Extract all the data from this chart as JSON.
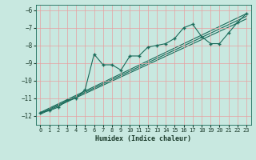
{
  "title": "",
  "xlabel": "Humidex (Indice chaleur)",
  "ylabel": "",
  "bg_color": "#c8e8e0",
  "grid_color": "#e8a0a0",
  "line_color": "#1a6b5a",
  "xlim": [
    -0.5,
    23.5
  ],
  "ylim": [
    -12.5,
    -5.7
  ],
  "xticks": [
    0,
    1,
    2,
    3,
    4,
    5,
    6,
    7,
    8,
    9,
    10,
    11,
    12,
    13,
    14,
    15,
    16,
    17,
    18,
    19,
    20,
    21,
    22,
    23
  ],
  "yticks": [
    -12,
    -11,
    -10,
    -9,
    -8,
    -7,
    -6
  ],
  "main_x": [
    0,
    1,
    2,
    3,
    4,
    5,
    6,
    7,
    8,
    9,
    10,
    11,
    12,
    13,
    14,
    15,
    16,
    17,
    18,
    19,
    20,
    21,
    22,
    23
  ],
  "main_y": [
    -11.8,
    -11.7,
    -11.5,
    -11.1,
    -11.0,
    -10.5,
    -8.5,
    -9.1,
    -9.1,
    -9.4,
    -8.6,
    -8.6,
    -8.1,
    -8.0,
    -7.9,
    -7.6,
    -7.0,
    -6.8,
    -7.5,
    -7.9,
    -7.9,
    -7.3,
    -6.7,
    -6.2
  ],
  "line1_x": [
    0,
    23
  ],
  "line1_y": [
    -11.8,
    -6.2
  ],
  "line2_x": [
    0,
    23
  ],
  "line2_y": [
    -11.85,
    -6.35
  ],
  "line3_x": [
    0,
    23
  ],
  "line3_y": [
    -11.9,
    -6.5
  ]
}
